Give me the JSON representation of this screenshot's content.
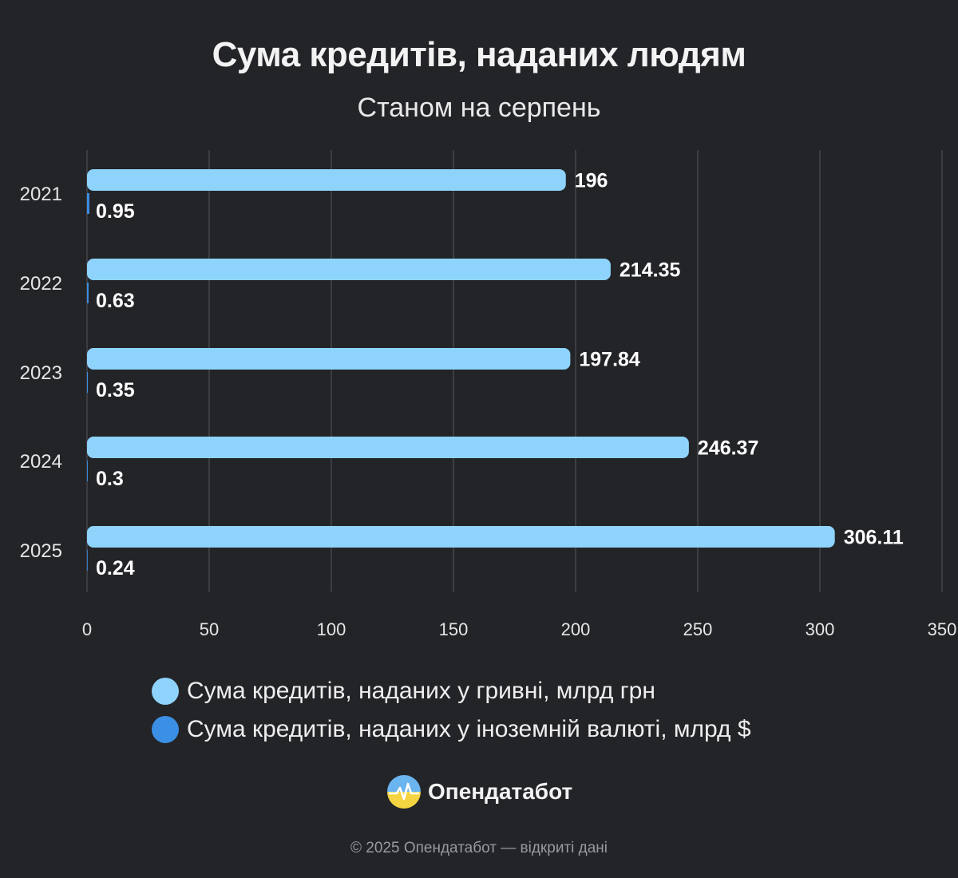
{
  "chart_data": {
    "type": "bar",
    "orientation": "horizontal",
    "title": "Сума кредитів, наданих людям",
    "subtitle": "Станом на серпень",
    "categories": [
      "2021",
      "2022",
      "2023",
      "2024",
      "2025"
    ],
    "series": [
      {
        "name": "Сума кредитів, наданих у гривні, млрд грн",
        "values": [
          196,
          214.35,
          197.84,
          246.37,
          306.11
        ],
        "labels": [
          "196",
          "214.35",
          "197.84",
          "246.37",
          "306.11"
        ],
        "color": "#8ed3fb"
      },
      {
        "name": "Сума кредитів, наданих у іноземній валюті, млрд $",
        "values": [
          0.95,
          0.63,
          0.35,
          0.3,
          0.24
        ],
        "labels": [
          "0.95",
          "0.63",
          "0.35",
          "0.3",
          "0.24"
        ],
        "color": "#3b8fe5"
      }
    ],
    "xlim": [
      0,
      350
    ],
    "xticks": [
      "0",
      "50",
      "100",
      "150",
      "200",
      "250",
      "300",
      "350"
    ],
    "grid": true,
    "legend_position": "bottom"
  },
  "branding": {
    "logo_label": "Опендатабот",
    "footer": "© 2025 Опендатабот — відкриті дані"
  },
  "colors": {
    "background": "#232428",
    "gridline": "#55565c",
    "logo_top": "#6ab4f0",
    "logo_bottom": "#f5d442"
  }
}
